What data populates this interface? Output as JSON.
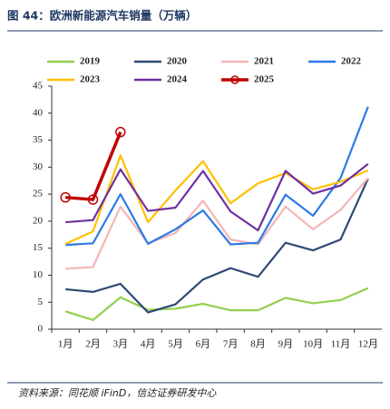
{
  "chart_data": {
    "type": "line",
    "title": "图 44：欧洲新能源汽车销量（万辆）",
    "source": "资料来源：同花顺 iFinD，信达证券研发中心",
    "categories": [
      "1月",
      "2月",
      "3月",
      "4月",
      "5月",
      "6月",
      "7月",
      "8月",
      "9月",
      "10月",
      "11月",
      "12月"
    ],
    "ylim": [
      0,
      45
    ],
    "yticks": [
      0,
      5,
      10,
      15,
      20,
      25,
      30,
      35,
      40,
      45
    ],
    "grid": false,
    "series": [
      {
        "name": "2019",
        "color": "#92d050",
        "values": [
          3.3,
          1.7,
          5.9,
          3.6,
          3.8,
          4.7,
          3.5,
          3.5,
          5.8,
          4.8,
          5.4,
          7.6
        ]
      },
      {
        "name": "2020",
        "color": "#2f4a74",
        "values": [
          7.4,
          6.9,
          8.4,
          3.1,
          4.6,
          9.2,
          11.3,
          9.7,
          16.0,
          14.6,
          16.6,
          27.9
        ]
      },
      {
        "name": "2021",
        "color": "#f4b6b6",
        "values": [
          11.2,
          11.5,
          22.7,
          15.9,
          17.8,
          23.8,
          16.6,
          15.7,
          22.7,
          18.5,
          22.1,
          28.0
        ]
      },
      {
        "name": "2022",
        "color": "#2e7ae6",
        "values": [
          15.6,
          15.9,
          25.0,
          15.8,
          18.5,
          22.0,
          15.7,
          16.0,
          24.9,
          21.0,
          28.0,
          41.2
        ]
      },
      {
        "name": "2023",
        "color": "#ffc000",
        "values": [
          15.8,
          18.1,
          32.2,
          19.8,
          25.7,
          31.1,
          23.3,
          27.0,
          28.9,
          25.9,
          27.3,
          29.4
        ]
      },
      {
        "name": "2024",
        "color": "#7030a0",
        "values": [
          19.8,
          20.2,
          29.6,
          21.9,
          22.5,
          29.3,
          21.8,
          18.3,
          29.3,
          25.1,
          26.6,
          30.6
        ]
      },
      {
        "name": "2025",
        "color": "#c00000",
        "markers": true,
        "values": [
          24.4,
          24.0,
          36.5,
          null,
          null,
          null,
          null,
          null,
          null,
          null,
          null,
          null
        ]
      }
    ]
  }
}
